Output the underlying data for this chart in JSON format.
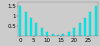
{
  "title": "",
  "bar_color": "#00EEEE",
  "bar_edge_color": "#00BBBB",
  "background_color": "#cccccc",
  "plot_bg_color": "#cccccc",
  "ylim": [
    0,
    1.7
  ],
  "yticks": [
    0.5,
    1.0,
    1.5
  ],
  "ytick_labels": [
    "0.5",
    "1",
    "1.5"
  ],
  "xtick_labels": [
    "0",
    "5",
    "10",
    "15",
    "20",
    "25"
  ],
  "xtick_positions": [
    0,
    5,
    10,
    15,
    20,
    25
  ],
  "values": [
    1.5,
    0.0,
    1.2,
    0.0,
    0.9,
    0.0,
    0.65,
    0.0,
    0.42,
    0.0,
    0.22,
    0.0,
    0.12,
    0.0,
    0.06,
    0.0,
    0.12,
    0.0,
    0.22,
    0.0,
    0.42,
    0.0,
    0.65,
    0.0,
    0.9,
    0.0,
    1.2,
    0.0,
    1.5
  ],
  "ylabel_fontsize": 4,
  "tick_fontsize": 4
}
